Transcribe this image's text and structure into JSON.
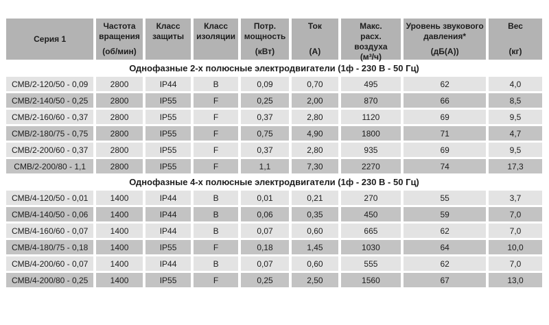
{
  "colors": {
    "header_bg": "#b3b3b3",
    "row_light": "#e3e3e3",
    "row_dark": "#c3c3c3",
    "text": "#1c1c1c"
  },
  "table": {
    "columns": [
      {
        "title": "Серия 1",
        "unit": ""
      },
      {
        "title": "Частота\nвращения",
        "unit": "(об/мин)"
      },
      {
        "title": "Класс\nзащиты",
        "unit": ""
      },
      {
        "title": "Класс\nизоляции",
        "unit": ""
      },
      {
        "title": "Потр.\nмощность",
        "unit": "(кВт)"
      },
      {
        "title": "Ток",
        "unit": "(А)"
      },
      {
        "title": "Макс.\nрасх.\nвоздуха",
        "unit": "(м³/ч)"
      },
      {
        "title": "Уровень звукового\nдавления*",
        "unit": "(дБ(А))"
      },
      {
        "title": "Вес",
        "unit": "(кг)"
      }
    ],
    "sections": [
      {
        "title": "Однофазные 2-х полюсные электродвигатели (1ф - 230 В - 50 Гц)",
        "rows": [
          [
            "CMB/2-120/50 - 0,09",
            "2800",
            "IP44",
            "B",
            "0,09",
            "0,70",
            "495",
            "62",
            "4,0"
          ],
          [
            "CMB/2-140/50 - 0,25",
            "2800",
            "IP55",
            "F",
            "0,25",
            "2,00",
            "870",
            "66",
            "8,5"
          ],
          [
            "CMB/2-160/60 - 0,37",
            "2800",
            "IP55",
            "F",
            "0,37",
            "2,80",
            "1120",
            "69",
            "9,5"
          ],
          [
            "CMB/2-180/75 - 0,75",
            "2800",
            "IP55",
            "F",
            "0,75",
            "4,90",
            "1800",
            "71",
            "4,7"
          ],
          [
            "CMB/2-200/60 - 0,37",
            "2800",
            "IP55",
            "F",
            "0,37",
            "2,80",
            "935",
            "69",
            "9,5"
          ],
          [
            "CMB/2-200/80 - 1,1",
            "2800",
            "IP55",
            "F",
            "1,1",
            "7,30",
            "2270",
            "74",
            "17,3"
          ]
        ]
      },
      {
        "title": "Однофазные 4-х полюсные электродвигатели (1ф - 230 В - 50 Гц)",
        "rows": [
          [
            "CMB/4-120/50 - 0,01",
            "1400",
            "IP44",
            "B",
            "0,01",
            "0,21",
            "270",
            "55",
            "3,7"
          ],
          [
            "CMB/4-140/50 - 0,06",
            "1400",
            "IP44",
            "B",
            "0,06",
            "0,35",
            "450",
            "59",
            "7,0"
          ],
          [
            "CMB/4-160/60 - 0,07",
            "1400",
            "IP44",
            "B",
            "0,07",
            "0,60",
            "665",
            "62",
            "7,0"
          ],
          [
            "CMB/4-180/75 - 0,18",
            "1400",
            "IP55",
            "F",
            "0,18",
            "1,45",
            "1030",
            "64",
            "10,0"
          ],
          [
            "CMB/4-200/60 - 0,07",
            "1400",
            "IP44",
            "B",
            "0,07",
            "0,60",
            "555",
            "62",
            "7,0"
          ],
          [
            "CMB/4-200/80 - 0,25",
            "1400",
            "IP55",
            "F",
            "0,25",
            "2,50",
            "1560",
            "67",
            "13,0"
          ]
        ]
      }
    ]
  }
}
